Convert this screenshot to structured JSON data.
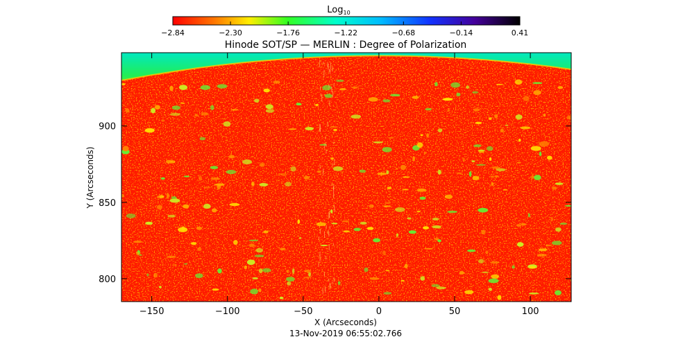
{
  "chart_data": {
    "type": "heatmap",
    "title": "Hinode SOT/SP — MERLIN : Degree of Polarization",
    "xlabel": "X (Arcseconds)",
    "ylabel": "Y (Arcseconds)",
    "xlim": [
      -170,
      127
    ],
    "ylim": [
      785,
      948
    ],
    "x_ticks": [
      -150,
      -100,
      -50,
      0,
      50,
      100
    ],
    "x_tick_labels": [
      "−150",
      "−100",
      "−50",
      "0",
      "50",
      "100"
    ],
    "y_ticks": [
      800,
      850,
      900
    ],
    "y_tick_labels": [
      "800",
      "850",
      "900"
    ],
    "colorbar": {
      "label": "Log",
      "label_subscript": "10",
      "min": -2.84,
      "max": 0.41,
      "ticks": [
        -2.84,
        -2.3,
        -1.76,
        -1.22,
        -0.68,
        -0.14,
        0.41
      ],
      "tick_labels": [
        "−2.84",
        "−2.30",
        "−1.76",
        "−1.22",
        "−0.68",
        "−0.14",
        "0.41"
      ],
      "colormap": "red-yellow-green-cyan-blue-purple-black"
    },
    "timestamp": "13-Nov-2019 06:55:02.766",
    "dominant_value": -2.84,
    "offlimb_value": -1.5
  },
  "colors": {
    "colormap_stops": [
      "#ff0000",
      "#ff8800",
      "#ffff00",
      "#00ff33",
      "#00ffff",
      "#0044ff",
      "#3300aa",
      "#000000"
    ],
    "background": "#ffffff"
  }
}
